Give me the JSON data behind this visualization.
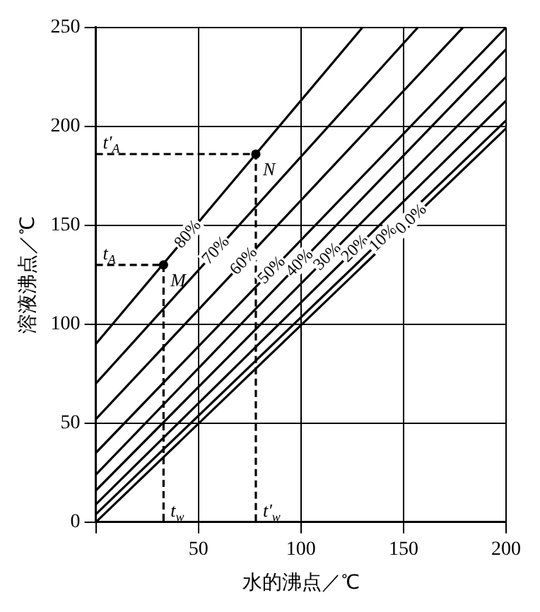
{
  "chart_data": {
    "type": "line",
    "xlabel": "水的沸点／℃",
    "ylabel": "溶液沸点／℃",
    "xlim": [
      0,
      200
    ],
    "ylim": [
      0,
      250
    ],
    "xticks": [
      {
        "value": 0,
        "label": null
      },
      50,
      100,
      150,
      200
    ],
    "yticks": [
      0,
      50,
      100,
      150,
      200,
      250
    ],
    "grid": true,
    "legend": false,
    "marker": "none",
    "line_style": "solid",
    "series": [
      {
        "name": "80%",
        "color": "#000000",
        "x": [
          0,
          130
        ],
        "values": [
          90,
          250
        ]
      },
      {
        "name": "70%",
        "color": "#000000",
        "x": [
          0,
          157
        ],
        "values": [
          70,
          250
        ]
      },
      {
        "name": "60%",
        "color": "#000000",
        "x": [
          0,
          179
        ],
        "values": [
          52,
          250
        ]
      },
      {
        "name": "50%",
        "color": "#000000",
        "x": [
          0,
          200
        ],
        "values": [
          35,
          250
        ]
      },
      {
        "name": "40%",
        "color": "#000000",
        "x": [
          0,
          200
        ],
        "values": [
          24,
          239
        ]
      },
      {
        "name": "30%",
        "color": "#000000",
        "x": [
          0,
          200
        ],
        "values": [
          16,
          225
        ]
      },
      {
        "name": "20%",
        "color": "#000000",
        "x": [
          0,
          200
        ],
        "values": [
          9,
          213
        ]
      },
      {
        "name": "10%",
        "color": "#000000",
        "x": [
          0,
          200
        ],
        "values": [
          4,
          203
        ]
      },
      {
        "name": "0.0%",
        "color": "#000000",
        "x": [
          0,
          200
        ],
        "values": [
          0,
          199
        ]
      },
      {
        "type": "line",
        "line_style": "dashed",
        "color": "#000000",
        "x": [
          0,
          33,
          33
        ],
        "values": [
          130,
          130,
          0
        ]
      },
      {
        "type": "line",
        "line_style": "dashed",
        "color": "#000000",
        "x": [
          0,
          78,
          78
        ],
        "values": [
          186,
          186,
          0
        ]
      },
      {
        "type": "scatter",
        "marker": "circle",
        "color": "#000000",
        "x": [
          33,
          78
        ],
        "values": [
          130,
          186
        ]
      }
    ],
    "annotations": [
      {
        "text": "t$_{A}$",
        "x": 0,
        "y": 130
      },
      {
        "text": "t′$_{A}$",
        "x": 0,
        "y": 186
      },
      {
        "text": "t$_{w}$",
        "x": 33,
        "y": 0
      },
      {
        "text": "t′$_{w}$",
        "x": 78,
        "y": 0
      },
      {
        "text": "M",
        "x": 33,
        "y": 130
      },
      {
        "text": "N",
        "x": 78,
        "y": 186
      }
    ]
  }
}
